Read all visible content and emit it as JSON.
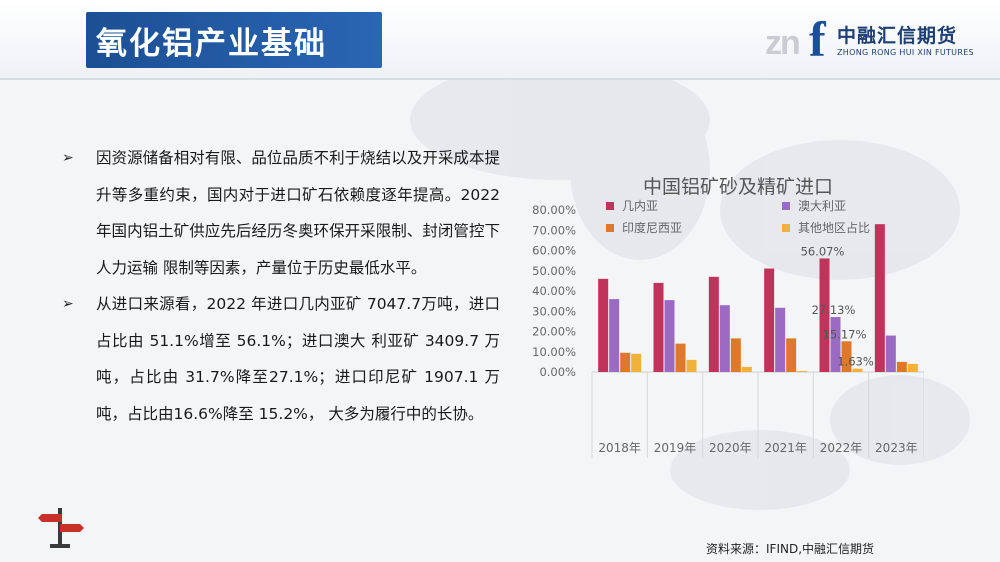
{
  "header": {
    "title": "氧化铝产业基础"
  },
  "logo": {
    "mark_grey": "zn",
    "mark_blue": "f",
    "name_cn": "中融汇信期货",
    "name_en": "ZHONG RONG HUI XIN FUTURES"
  },
  "bullets": [
    {
      "arrow": "➢",
      "text": "因资源储备相对有限、品位品质不利于烧结以及开采成本提升等多重约束，国内对于进口矿石依赖度逐年提高。2022 年国内铝土矿供应先后经历冬奥环保开采限制、封闭管控下人力运输 限制等因素，产量位于历史最低水平。"
    },
    {
      "arrow": "➢",
      "text": "从进口来源看，2022 年进口几内亚矿 7047.7万吨，进口占比由 51.1%增至 56.1%；进口澳大 利亚矿 3409.7 万吨，占比由 31.7%降至27.1%；进口印尼矿 1907.1 万吨，占比由16.6%降至 15.2%， 大多为履行中的长协。"
    }
  ],
  "source": "资料来源：IFIND,中融汇信期货",
  "colors": {
    "guinea": "#c0335a",
    "australia": "#9b6bc4",
    "indonesia": "#e0782c",
    "other": "#f0b23a",
    "title_bar": "#1c4f93"
  },
  "chart_data": {
    "type": "bar",
    "title": "中国铝矿砂及精矿进口",
    "categories": [
      "2018年",
      "2019年",
      "2020年",
      "2021年",
      "2022年",
      "2023年"
    ],
    "series": [
      {
        "name": "几内亚",
        "values": [
          46,
          44,
          47,
          51.1,
          56.07,
          73
        ]
      },
      {
        "name": "澳大利亚",
        "values": [
          36,
          35.5,
          33,
          31.7,
          27.13,
          18
        ]
      },
      {
        "name": "印度尼西亚",
        "values": [
          9.5,
          14,
          16.6,
          16.6,
          15.17,
          5
        ]
      },
      {
        "name": "其他地区占比",
        "values": [
          9,
          6,
          2.5,
          0.5,
          1.63,
          4
        ]
      }
    ],
    "data_labels": [
      {
        "series": 0,
        "index": 4,
        "text": "56.07%"
      },
      {
        "series": 1,
        "index": 4,
        "text": "27.13%"
      },
      {
        "series": 2,
        "index": 4,
        "text": "15.17%"
      },
      {
        "series": 3,
        "index": 4,
        "text": "1.63%"
      }
    ],
    "yticks": [
      "0.00%",
      "10.00%",
      "20.00%",
      "30.00%",
      "40.00%",
      "50.00%",
      "60.00%",
      "70.00%",
      "80.00%"
    ],
    "ylim": [
      0,
      80
    ],
    "grid": false,
    "legend_position": "top"
  }
}
